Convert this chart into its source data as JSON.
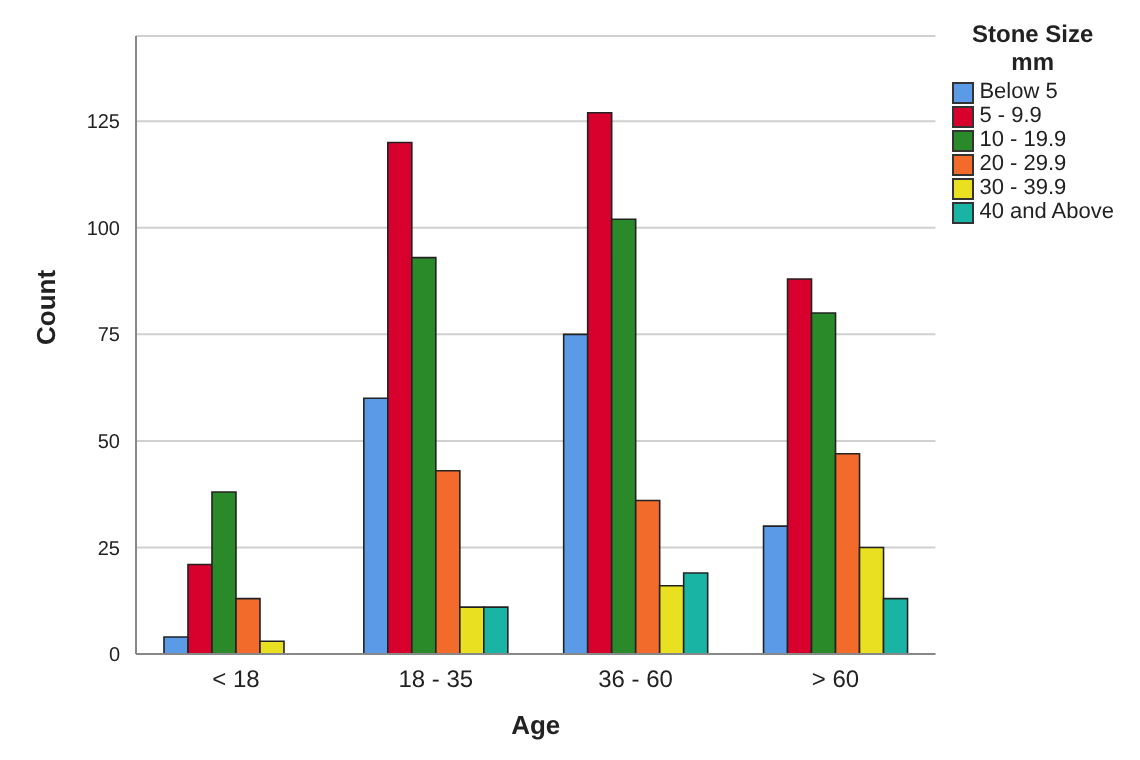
{
  "chart_data": {
    "type": "bar",
    "xlabel": "Age",
    "ylabel": "Count",
    "legend_title": "Stone Size\nmm",
    "categories": [
      "< 18",
      "18 - 35",
      "36 - 60",
      "> 60"
    ],
    "series": [
      {
        "name": "Below 5",
        "color": "#5b9ae6",
        "values": [
          4,
          60,
          75,
          30
        ]
      },
      {
        "name": "5 - 9.9",
        "color": "#d8002d",
        "values": [
          21,
          120,
          127,
          88
        ]
      },
      {
        "name": "10 - 19.9",
        "color": "#2a8a2a",
        "values": [
          38,
          93,
          102,
          80
        ]
      },
      {
        "name": "20 - 29.9",
        "color": "#f26b2a",
        "values": [
          13,
          43,
          36,
          47
        ]
      },
      {
        "name": "30 - 39.9",
        "color": "#e8e020",
        "values": [
          3,
          11,
          16,
          25
        ]
      },
      {
        "name": "40 and Above",
        "color": "#1ab4a4",
        "values": [
          0,
          11,
          19,
          13
        ]
      }
    ],
    "ylim": [
      0,
      145
    ],
    "yticks": [
      0,
      25,
      50,
      75,
      100,
      125
    ],
    "grid": "y",
    "legend": "top right"
  }
}
